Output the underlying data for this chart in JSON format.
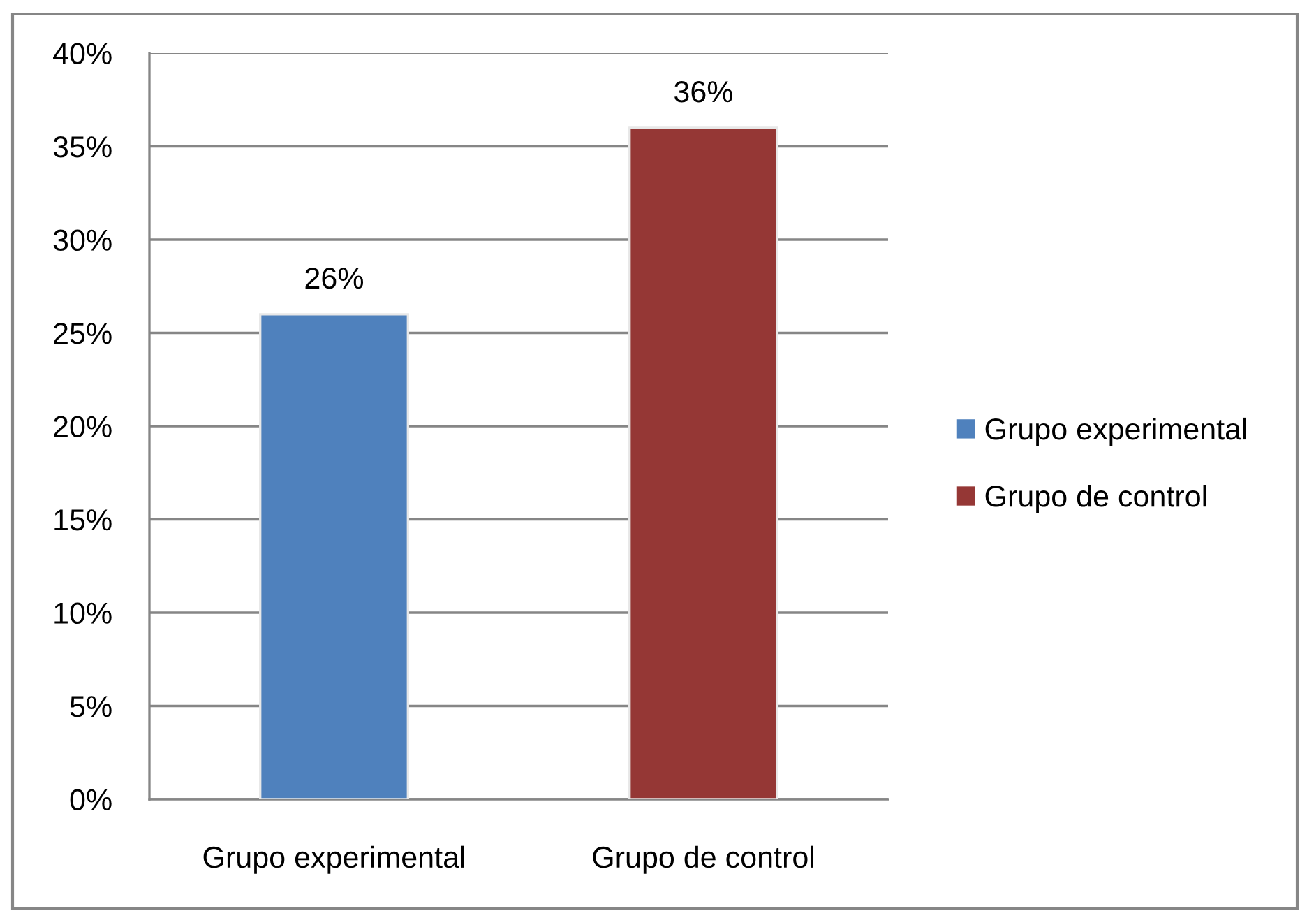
{
  "chart_data": {
    "type": "bar",
    "categories": [
      "Grupo experimental",
      "Grupo de control"
    ],
    "series": [
      {
        "name": "Grupo experimental",
        "color": "#4f81bd",
        "values": [
          26,
          null
        ],
        "value_labels": [
          "26%",
          null
        ]
      },
      {
        "name": "Grupo de control",
        "color": "#953735",
        "values": [
          null,
          36
        ],
        "value_labels": [
          null,
          "36%"
        ]
      }
    ],
    "ylim": [
      0,
      40
    ],
    "yticks": [
      {
        "value": 0,
        "label": "0%"
      },
      {
        "value": 5,
        "label": "5%"
      },
      {
        "value": 10,
        "label": "10%"
      },
      {
        "value": 15,
        "label": "15%"
      },
      {
        "value": 20,
        "label": "20%"
      },
      {
        "value": 25,
        "label": "25%"
      },
      {
        "value": 30,
        "label": "30%"
      },
      {
        "value": 35,
        "label": "35%"
      },
      {
        "value": 40,
        "label": "40%"
      }
    ],
    "grid": "y",
    "legend": "right"
  }
}
